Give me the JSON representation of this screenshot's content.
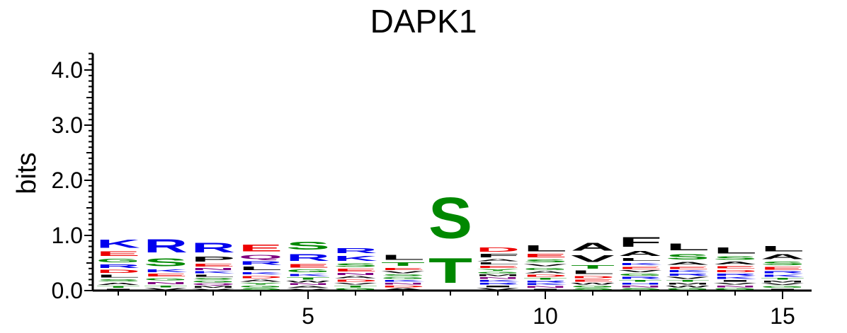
{
  "chart_data": {
    "type": "sequence-logo",
    "title": "DAPK1",
    "ylabel": "bits",
    "xlabel": "",
    "ylim": [
      0,
      4.3
    ],
    "yticks": [
      "0.0",
      "1.0",
      "2.0",
      "3.0",
      "4.0"
    ],
    "xticks": [
      {
        "position": 5,
        "label": "5"
      },
      {
        "position": 10,
        "label": "10"
      },
      {
        "position": 15,
        "label": "15"
      }
    ],
    "colors": {
      "K": "#0000ee",
      "R": "#0000ee",
      "H": "#0000ee",
      "D": "#ee0000",
      "E": "#ee0000",
      "S": "#008800",
      "T": "#008800",
      "G": "#008800",
      "Y": "#008800",
      "C": "#008800",
      "N": "#800080",
      "Q": "#800080",
      "A": "#000000",
      "V": "#000000",
      "L": "#000000",
      "I": "#000000",
      "P": "#000000",
      "F": "#000000",
      "M": "#000000",
      "W": "#000000"
    },
    "positions": [
      {
        "pos": 1,
        "letters": [
          [
            "K",
            0.24
          ],
          [
            "E",
            0.13
          ],
          [
            "G",
            0.11
          ],
          [
            "D",
            0.09
          ],
          [
            "R",
            0.1
          ],
          [
            "L",
            0.08
          ],
          [
            "A",
            0.06
          ],
          [
            "S",
            0.07
          ],
          [
            "T",
            0.05
          ],
          [
            "I",
            0.04
          ]
        ]
      },
      {
        "pos": 2,
        "letters": [
          [
            "R",
            0.38
          ],
          [
            "S",
            0.22
          ],
          [
            "E",
            0.08
          ],
          [
            "K",
            0.08
          ],
          [
            "N",
            0.07
          ],
          [
            "G",
            0.07
          ],
          [
            "V",
            0.05
          ],
          [
            "T",
            0.05
          ]
        ]
      },
      {
        "pos": 3,
        "letters": [
          [
            "R",
            0.28
          ],
          [
            "P",
            0.14
          ],
          [
            "E",
            0.08
          ],
          [
            "L",
            0.06
          ],
          [
            "K",
            0.06
          ],
          [
            "N",
            0.06
          ],
          [
            "M",
            0.05
          ],
          [
            "Q",
            0.05
          ],
          [
            "G",
            0.05
          ],
          [
            "S",
            0.05
          ],
          [
            "V",
            0.04
          ]
        ]
      },
      {
        "pos": 4,
        "letters": [
          [
            "E",
            0.2
          ],
          [
            "L",
            0.1
          ],
          [
            "Q",
            0.12
          ],
          [
            "R",
            0.1
          ],
          [
            "D",
            0.07
          ],
          [
            "A",
            0.06
          ],
          [
            "K",
            0.07
          ],
          [
            "S",
            0.05
          ],
          [
            "G",
            0.05
          ],
          [
            "Y",
            0.05
          ]
        ]
      },
      {
        "pos": 5,
        "letters": [
          [
            "R",
            0.2
          ],
          [
            "S",
            0.22
          ],
          [
            "E",
            0.1
          ],
          [
            "G",
            0.08
          ],
          [
            "K",
            0.07
          ],
          [
            "T",
            0.06
          ],
          [
            "A",
            0.05
          ],
          [
            "N",
            0.05
          ],
          [
            "W",
            0.05
          ],
          [
            "V",
            0.04
          ]
        ]
      },
      {
        "pos": 6,
        "letters": [
          [
            "R",
            0.15
          ],
          [
            "K",
            0.14
          ],
          [
            "S",
            0.1
          ],
          [
            "E",
            0.08
          ],
          [
            "D",
            0.06
          ],
          [
            "A",
            0.06
          ],
          [
            "N",
            0.06
          ],
          [
            "G",
            0.05
          ],
          [
            "T",
            0.05
          ],
          [
            "V",
            0.05
          ]
        ]
      },
      {
        "pos": 7,
        "letters": [
          [
            "L",
            0.14
          ],
          [
            "T",
            0.1
          ],
          [
            "E",
            0.07
          ],
          [
            "V",
            0.06
          ],
          [
            "A",
            0.05
          ],
          [
            "D",
            0.05
          ],
          [
            "N",
            0.05
          ],
          [
            "K",
            0.05
          ],
          [
            "G",
            0.05
          ],
          [
            "S",
            0.05
          ]
        ]
      },
      {
        "pos": 8,
        "letters": [
          [
            "S",
            1.19
          ],
          [
            "T",
            0.72
          ]
        ]
      },
      {
        "pos": 9,
        "letters": [
          [
            "D",
            0.12
          ],
          [
            "F",
            0.1
          ],
          [
            "E",
            0.06
          ],
          [
            "L",
            0.06
          ],
          [
            "A",
            0.06
          ],
          [
            "V",
            0.05
          ],
          [
            "I",
            0.05
          ],
          [
            "R",
            0.05
          ],
          [
            "K",
            0.05
          ],
          [
            "N",
            0.05
          ],
          [
            "M",
            0.05
          ],
          [
            "G",
            0.05
          ],
          [
            "Y",
            0.05
          ]
        ]
      },
      {
        "pos": 10,
        "letters": [
          [
            "L",
            0.17
          ],
          [
            "E",
            0.1
          ],
          [
            "S",
            0.08
          ],
          [
            "G",
            0.07
          ],
          [
            "V",
            0.07
          ],
          [
            "D",
            0.06
          ],
          [
            "A",
            0.06
          ],
          [
            "N",
            0.05
          ],
          [
            "K",
            0.05
          ],
          [
            "R",
            0.05
          ],
          [
            "T",
            0.05
          ],
          [
            "I",
            0.04
          ]
        ]
      },
      {
        "pos": 11,
        "letters": [
          [
            "A",
            0.22
          ],
          [
            "V",
            0.2
          ],
          [
            "L",
            0.1
          ],
          [
            "T",
            0.1
          ],
          [
            "D",
            0.07
          ],
          [
            "E",
            0.06
          ],
          [
            "S",
            0.05
          ],
          [
            "G",
            0.05
          ],
          [
            "W",
            0.05
          ]
        ]
      },
      {
        "pos": 12,
        "letters": [
          [
            "F",
            0.28
          ],
          [
            "A",
            0.14
          ],
          [
            "L",
            0.08
          ],
          [
            "E",
            0.07
          ],
          [
            "K",
            0.07
          ],
          [
            "R",
            0.06
          ],
          [
            "G",
            0.06
          ],
          [
            "V",
            0.06
          ],
          [
            "S",
            0.05
          ],
          [
            "N",
            0.05
          ],
          [
            "H",
            0.05
          ],
          [
            "T",
            0.05
          ]
        ]
      },
      {
        "pos": 13,
        "letters": [
          [
            "L",
            0.2
          ],
          [
            "S",
            0.16
          ],
          [
            "A",
            0.08
          ],
          [
            "E",
            0.07
          ],
          [
            "V",
            0.06
          ],
          [
            "R",
            0.06
          ],
          [
            "K",
            0.06
          ],
          [
            "G",
            0.05
          ],
          [
            "W",
            0.05
          ],
          [
            "M",
            0.05
          ],
          [
            "T",
            0.05
          ]
        ]
      },
      {
        "pos": 14,
        "letters": [
          [
            "L",
            0.17
          ],
          [
            "S",
            0.1
          ],
          [
            "A",
            0.08
          ],
          [
            "D",
            0.07
          ],
          [
            "E",
            0.07
          ],
          [
            "K",
            0.06
          ],
          [
            "R",
            0.06
          ],
          [
            "G",
            0.05
          ],
          [
            "N",
            0.05
          ],
          [
            "V",
            0.05
          ],
          [
            "I",
            0.05
          ]
        ]
      },
      {
        "pos": 15,
        "letters": [
          [
            "L",
            0.16
          ],
          [
            "A",
            0.14
          ],
          [
            "S",
            0.1
          ],
          [
            "E",
            0.08
          ],
          [
            "K",
            0.06
          ],
          [
            "R",
            0.06
          ],
          [
            "G",
            0.05
          ],
          [
            "V",
            0.05
          ],
          [
            "M",
            0.05
          ],
          [
            "T",
            0.05
          ],
          [
            "I",
            0.04
          ]
        ]
      }
    ]
  }
}
